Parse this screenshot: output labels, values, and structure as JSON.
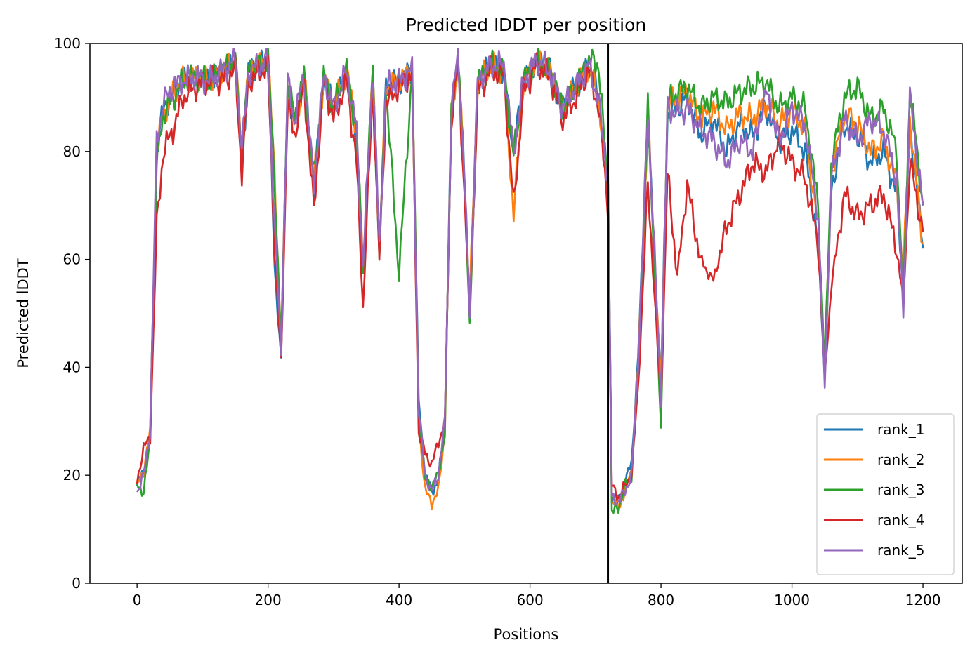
{
  "chart_data": {
    "type": "line",
    "title": "Predicted lDDT per position",
    "xlabel": "Positions",
    "ylabel": "Predicted lDDT",
    "xlim": [
      -72,
      1260
    ],
    "ylim": [
      0,
      100
    ],
    "x_ticks": [
      0,
      200,
      400,
      600,
      800,
      1000,
      1200
    ],
    "y_ticks": [
      0,
      20,
      40,
      60,
      80,
      100
    ],
    "legend_position": "lower-right",
    "grid": false,
    "chain_break_x": 719,
    "series": [
      {
        "name": "rank_1",
        "color": "#1f77b4",
        "offset": 0,
        "x": [
          0,
          10,
          20,
          30,
          40,
          55,
          70,
          90,
          110,
          130,
          150,
          160,
          170,
          190,
          200,
          210,
          220,
          230,
          240,
          255,
          270,
          285,
          300,
          320,
          335,
          345,
          360,
          370,
          380,
          400,
          420,
          430,
          440,
          450,
          460,
          470,
          480,
          490,
          500,
          508,
          520,
          540,
          560,
          575,
          590,
          610,
          630,
          650,
          670,
          690,
          705,
          719,
          725,
          735,
          745,
          755,
          765,
          780,
          800,
          810,
          825,
          840,
          860,
          880,
          900,
          920,
          940,
          960,
          980,
          1000,
          1020,
          1040,
          1050,
          1060,
          1080,
          1100,
          1120,
          1140,
          1160,
          1170,
          1180,
          1200
        ],
        "values": [
          18,
          21,
          28,
          80,
          88,
          91,
          93,
          94,
          93,
          95,
          97,
          78,
          95,
          96,
          97,
          58,
          42,
          92,
          85,
          94,
          73,
          94,
          88,
          95,
          83,
          57,
          95,
          62,
          92,
          93,
          95,
          34,
          20,
          17,
          19,
          30,
          88,
          97,
          75,
          50,
          93,
          96,
          95,
          80,
          93,
          97,
          95,
          88,
          92,
          96,
          89,
          75,
          16,
          15,
          19,
          22,
          42,
          85,
          37,
          87,
          88,
          90,
          83,
          86,
          80,
          85,
          83,
          88,
          82,
          84,
          80,
          63,
          38,
          73,
          85,
          83,
          78,
          80,
          72,
          55,
          85,
          62
        ]
      },
      {
        "name": "rank_2",
        "color": "#ff7f0e",
        "offset": 0,
        "x": [
          0,
          10,
          20,
          30,
          40,
          55,
          70,
          90,
          110,
          130,
          150,
          160,
          170,
          190,
          200,
          210,
          220,
          230,
          240,
          255,
          270,
          285,
          300,
          320,
          335,
          345,
          360,
          370,
          380,
          400,
          420,
          430,
          440,
          450,
          460,
          470,
          480,
          490,
          500,
          508,
          520,
          540,
          560,
          575,
          590,
          610,
          630,
          650,
          670,
          690,
          705,
          719,
          725,
          735,
          745,
          755,
          765,
          780,
          800,
          810,
          825,
          840,
          860,
          880,
          900,
          920,
          940,
          960,
          980,
          1000,
          1020,
          1040,
          1050,
          1060,
          1080,
          1100,
          1120,
          1140,
          1160,
          1170,
          1180,
          1200
        ],
        "values": [
          18,
          21,
          28,
          80,
          87,
          91,
          93,
          94,
          93,
          95,
          97,
          80,
          95,
          96,
          97,
          76,
          44,
          92,
          85,
          94,
          74,
          94,
          88,
          95,
          84,
          58,
          95,
          62,
          92,
          93,
          95,
          30,
          17,
          15,
          17,
          28,
          88,
          97,
          75,
          52,
          93,
          96,
          95,
          68,
          93,
          97,
          95,
          88,
          92,
          96,
          89,
          75,
          15,
          14,
          17,
          21,
          40,
          86,
          36,
          89,
          90,
          91,
          86,
          88,
          84,
          87,
          86,
          89,
          85,
          88,
          84,
          66,
          40,
          76,
          87,
          85,
          80,
          82,
          74,
          57,
          86,
          63
        ]
      },
      {
        "name": "rank_3",
        "color": "#2ca02c",
        "offset": 0,
        "x": [
          0,
          10,
          20,
          30,
          40,
          55,
          70,
          90,
          110,
          130,
          150,
          160,
          170,
          190,
          200,
          210,
          220,
          230,
          240,
          255,
          270,
          285,
          300,
          320,
          335,
          345,
          360,
          370,
          380,
          400,
          420,
          430,
          440,
          450,
          460,
          470,
          480,
          490,
          500,
          508,
          520,
          540,
          560,
          575,
          590,
          610,
          630,
          650,
          670,
          690,
          705,
          719,
          725,
          735,
          745,
          755,
          765,
          780,
          800,
          810,
          825,
          840,
          860,
          880,
          900,
          920,
          940,
          960,
          980,
          1000,
          1020,
          1040,
          1050,
          1060,
          1080,
          1100,
          1120,
          1140,
          1160,
          1170,
          1180,
          1200
        ],
        "values": [
          18,
          17,
          26,
          78,
          87,
          90,
          93,
          94,
          93,
          95,
          97,
          79,
          95,
          96,
          97,
          75,
          44,
          93,
          86,
          94,
          75,
          94,
          88,
          95,
          84,
          58,
          95,
          60,
          92,
          57,
          95,
          32,
          19,
          18,
          20,
          28,
          88,
          97,
          75,
          47,
          93,
          96,
          95,
          79,
          93,
          97,
          95,
          88,
          92,
          97,
          96,
          73,
          13,
          14,
          18,
          20,
          38,
          88,
          28,
          89,
          91,
          92,
          88,
          90,
          89,
          91,
          92,
          93,
          88,
          90,
          88,
          70,
          40,
          78,
          90,
          92,
          86,
          88,
          80,
          52,
          92,
          70
        ]
      },
      {
        "name": "rank_4",
        "color": "#d62728",
        "offset": 0,
        "x": [
          0,
          10,
          20,
          30,
          40,
          55,
          70,
          90,
          110,
          130,
          150,
          160,
          170,
          190,
          200,
          210,
          220,
          230,
          240,
          255,
          270,
          285,
          300,
          320,
          335,
          345,
          360,
          370,
          380,
          400,
          420,
          430,
          440,
          450,
          460,
          470,
          480,
          490,
          500,
          508,
          520,
          540,
          560,
          575,
          590,
          610,
          630,
          650,
          670,
          690,
          705,
          719,
          725,
          735,
          745,
          755,
          765,
          780,
          800,
          810,
          825,
          840,
          860,
          880,
          900,
          920,
          940,
          960,
          980,
          1000,
          1020,
          1040,
          1050,
          1060,
          1080,
          1100,
          1120,
          1140,
          1160,
          1170,
          1180,
          1200
        ],
        "values": [
          19,
          25,
          27,
          66,
          80,
          84,
          90,
          92,
          93,
          93,
          95,
          76,
          93,
          95,
          96,
          62,
          41,
          89,
          83,
          92,
          69,
          93,
          86,
          93,
          78,
          51,
          92,
          60,
          89,
          92,
          94,
          28,
          24,
          22,
          26,
          30,
          86,
          96,
          72,
          50,
          91,
          95,
          94,
          70,
          91,
          96,
          94,
          86,
          90,
          95,
          88,
          70,
          18,
          16,
          18,
          20,
          36,
          74,
          33,
          76,
          57,
          74,
          60,
          56,
          66,
          72,
          78,
          76,
          82,
          78,
          75,
          63,
          38,
          55,
          72,
          68,
          70,
          72,
          62,
          52,
          78,
          65
        ]
      },
      {
        "name": "rank_5",
        "color": "#9467bd",
        "offset": 0,
        "x": [
          0,
          10,
          20,
          30,
          40,
          55,
          70,
          90,
          110,
          130,
          150,
          160,
          170,
          190,
          200,
          210,
          220,
          230,
          240,
          255,
          270,
          285,
          300,
          320,
          335,
          345,
          360,
          370,
          380,
          400,
          420,
          430,
          440,
          450,
          460,
          470,
          480,
          490,
          500,
          508,
          520,
          540,
          560,
          575,
          590,
          610,
          630,
          650,
          670,
          690,
          705,
          719,
          725,
          735,
          745,
          755,
          765,
          780,
          800,
          810,
          825,
          840,
          860,
          880,
          900,
          920,
          940,
          960,
          980,
          1000,
          1020,
          1040,
          1050,
          1060,
          1080,
          1100,
          1120,
          1140,
          1160,
          1170,
          1180,
          1200
        ],
        "values": [
          17,
          20,
          28,
          82,
          89,
          92,
          93,
          94,
          93,
          95,
          97,
          80,
          95,
          96,
          97,
          66,
          43,
          93,
          86,
          94,
          74,
          94,
          88,
          95,
          84,
          59,
          95,
          62,
          92,
          93,
          95,
          32,
          20,
          17,
          20,
          30,
          88,
          98,
          75,
          50,
          93,
          96,
          96,
          80,
          93,
          97,
          95,
          88,
          92,
          96,
          89,
          75,
          16,
          15,
          17,
          20,
          40,
          88,
          34,
          88,
          87,
          88,
          84,
          82,
          78,
          82,
          80,
          91,
          82,
          88,
          85,
          68,
          36,
          75,
          86,
          82,
          86,
          84,
          75,
          50,
          90,
          70
        ]
      }
    ]
  }
}
